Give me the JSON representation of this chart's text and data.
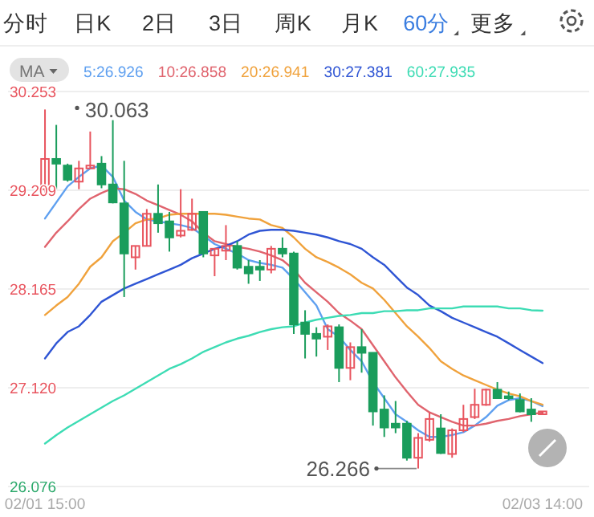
{
  "chart_data": {
    "type": "candlestick",
    "annotations": [
      "分时",
      "日K",
      "2日",
      "3日",
      "周K",
      "月K",
      "60分",
      "更多",
      "30.063",
      "26.266"
    ],
    "legend_title": "MA",
    "legend": "top left",
    "grid": "y",
    "categories": [
      "02/01 15:00",
      null,
      null,
      null,
      null,
      null,
      null,
      null,
      null,
      null,
      null,
      null,
      null,
      null,
      null,
      null,
      null,
      null,
      null,
      null,
      null,
      null,
      null,
      null,
      null,
      null,
      null,
      null,
      null,
      null,
      null,
      null,
      null,
      null,
      null,
      null,
      null,
      null,
      null,
      null,
      null,
      null,
      null,
      null,
      "02/03 14:00"
    ],
    "ylim": [
      26.076,
      30.253
    ],
    "yticks": [
      30.253,
      29.209,
      28.165,
      {
        "value": 27.12,
        "label": "27.120"
      },
      26.076
    ],
    "ohlc": [
      [
        29.22,
        30.063,
        29.18,
        29.54
      ],
      [
        29.54,
        29.9,
        29.22,
        29.49
      ],
      [
        29.47,
        29.49,
        29.3,
        29.32
      ],
      [
        29.3,
        29.52,
        29.22,
        29.44
      ],
      [
        29.44,
        29.83,
        29.44,
        29.47
      ],
      [
        29.49,
        29.57,
        29.23,
        29.27
      ],
      [
        29.27,
        29.95,
        29.07,
        29.08
      ],
      [
        29.07,
        29.52,
        28.08,
        28.54
      ],
      [
        28.5,
        28.62,
        28.37,
        28.62
      ],
      [
        28.62,
        29.01,
        28.62,
        28.96
      ],
      [
        28.96,
        29.27,
        28.76,
        28.86
      ],
      [
        28.88,
        28.98,
        28.56,
        28.71
      ],
      [
        28.73,
        29.22,
        28.71,
        28.78
      ],
      [
        28.79,
        29.12,
        28.78,
        28.96
      ],
      [
        28.98,
        28.98,
        28.5,
        28.54
      ],
      [
        28.52,
        28.59,
        28.3,
        28.59
      ],
      [
        28.57,
        28.84,
        28.47,
        28.62
      ],
      [
        28.62,
        28.67,
        28.37,
        28.39
      ],
      [
        28.4,
        28.47,
        28.22,
        28.33
      ],
      [
        28.4,
        28.47,
        28.25,
        28.37
      ],
      [
        28.37,
        28.62,
        28.33,
        28.59
      ],
      [
        28.59,
        28.71,
        28.5,
        28.54
      ],
      [
        28.54,
        28.56,
        27.69,
        27.79
      ],
      [
        27.81,
        27.94,
        27.43,
        27.69
      ],
      [
        27.69,
        27.76,
        27.45,
        27.64
      ],
      [
        27.66,
        27.79,
        27.52,
        27.77
      ],
      [
        27.76,
        27.79,
        27.18,
        27.33
      ],
      [
        27.33,
        27.6,
        27.2,
        27.55
      ],
      [
        27.55,
        27.74,
        27.28,
        27.49
      ],
      [
        27.49,
        27.49,
        26.72,
        26.87
      ],
      [
        26.89,
        27.04,
        26.6,
        26.7
      ],
      [
        26.74,
        26.98,
        26.64,
        26.7
      ],
      [
        26.74,
        26.77,
        26.35,
        26.38
      ],
      [
        26.38,
        26.64,
        26.266,
        26.59
      ],
      [
        26.57,
        26.86,
        26.55,
        26.79
      ],
      [
        26.69,
        26.84,
        26.42,
        26.43
      ],
      [
        26.42,
        26.69,
        26.38,
        26.67
      ],
      [
        26.67,
        26.94,
        26.65,
        26.79
      ],
      [
        26.81,
        27.11,
        26.79,
        26.94
      ],
      [
        26.94,
        27.11,
        26.93,
        27.1
      ],
      [
        27.1,
        27.18,
        27.01,
        27.01
      ],
      [
        27.03,
        27.08,
        26.99,
        27.01
      ],
      [
        26.99,
        27.06,
        26.86,
        26.87
      ],
      [
        26.89,
        27.01,
        26.76,
        26.84
      ],
      [
        26.84,
        26.87,
        26.84,
        26.87
      ]
    ],
    "colors": [
      "#e8545e",
      "#1a9d5c",
      "#1a9d5c",
      "#e8545e",
      "#e8545e",
      "#1a9d5c",
      "#1a9d5c",
      "#1a9d5c",
      "#e8545e",
      "#e8545e",
      "#1a9d5c",
      "#1a9d5c",
      "#e8545e",
      "#e8545e",
      "#1a9d5c",
      "#e8545e",
      "#e8545e",
      "#1a9d5c",
      "#1a9d5c",
      "#1a9d5c",
      "#e8545e",
      "#1a9d5c",
      "#1a9d5c",
      "#1a9d5c",
      "#1a9d5c",
      "#e8545e",
      "#1a9d5c",
      "#e8545e",
      "#1a9d5c",
      "#1a9d5c",
      "#1a9d5c",
      "#1a9d5c",
      "#1a9d5c",
      "#e8545e",
      "#e8545e",
      "#1a9d5c",
      "#e8545e",
      "#e8545e",
      "#e8545e",
      "#e8545e",
      "#1a9d5c",
      "#1a9d5c",
      "#1a9d5c",
      "#1a9d5c",
      "#e8545e"
    ],
    "series": [
      {
        "type": "line",
        "name": "5:26.926",
        "color": "#5fa0f0",
        "values": [
          28.91,
          29.08,
          29.25,
          29.35,
          29.44,
          29.47,
          29.35,
          29.1,
          28.98,
          28.9,
          28.88,
          28.86,
          28.84,
          28.81,
          28.73,
          28.64,
          28.59,
          28.54,
          28.47,
          28.44,
          28.42,
          28.39,
          28.27,
          28.13,
          27.99,
          27.74,
          27.66,
          27.52,
          27.4,
          27.18,
          27.01,
          26.84,
          26.76,
          26.67,
          26.6,
          26.6,
          26.62,
          26.65,
          26.72,
          26.81,
          26.93,
          26.99,
          27.01,
          26.98,
          26.926
        ]
      },
      {
        "type": "line",
        "name": "10:26.858",
        "color": "#e0646e",
        "values": [
          28.61,
          28.76,
          28.88,
          29.01,
          29.12,
          29.18,
          29.23,
          29.22,
          29.17,
          29.1,
          29.05,
          29.0,
          28.95,
          28.88,
          28.76,
          28.67,
          28.64,
          28.61,
          28.59,
          28.56,
          28.52,
          28.47,
          28.37,
          28.23,
          28.13,
          28.03,
          27.91,
          27.83,
          27.74,
          27.57,
          27.4,
          27.23,
          27.08,
          26.94,
          26.86,
          26.81,
          26.76,
          26.72,
          26.72,
          26.74,
          26.77,
          26.79,
          26.82,
          26.84,
          26.858
        ]
      },
      {
        "type": "line",
        "name": "20:26.941",
        "color": "#f0a23c",
        "values": [
          27.89,
          27.99,
          28.08,
          28.22,
          28.4,
          28.5,
          28.67,
          28.76,
          28.86,
          28.9,
          28.91,
          28.95,
          28.96,
          28.96,
          28.96,
          28.96,
          28.95,
          28.93,
          28.91,
          28.9,
          28.84,
          28.81,
          28.71,
          28.59,
          28.5,
          28.45,
          28.39,
          28.32,
          28.23,
          28.17,
          28.05,
          27.91,
          27.77,
          27.66,
          27.54,
          27.4,
          27.32,
          27.25,
          27.2,
          27.15,
          27.1,
          27.06,
          27.03,
          26.98,
          26.941
        ]
      },
      {
        "type": "line",
        "name": "30:27.381",
        "color": "#2f55d4",
        "values": [
          27.43,
          27.59,
          27.71,
          27.77,
          27.89,
          28.03,
          28.1,
          28.17,
          28.22,
          28.27,
          28.32,
          28.37,
          28.42,
          28.49,
          28.54,
          28.59,
          28.62,
          28.67,
          28.74,
          28.78,
          28.79,
          28.79,
          28.78,
          28.76,
          28.74,
          28.71,
          28.67,
          28.64,
          28.59,
          28.5,
          28.42,
          28.3,
          28.18,
          28.1,
          27.99,
          27.93,
          27.86,
          27.81,
          27.76,
          27.71,
          27.66,
          27.59,
          27.52,
          27.45,
          27.381
        ]
      },
      {
        "type": "line",
        "name": "60:27.935",
        "color": "#3ddcb4",
        "values": [
          26.53,
          26.62,
          26.7,
          26.77,
          26.84,
          26.91,
          26.98,
          27.04,
          27.11,
          27.18,
          27.25,
          27.32,
          27.37,
          27.43,
          27.5,
          27.55,
          27.6,
          27.64,
          27.67,
          27.71,
          27.74,
          27.76,
          27.77,
          27.81,
          27.84,
          27.86,
          27.88,
          27.89,
          27.91,
          27.91,
          27.93,
          27.93,
          27.94,
          27.94,
          27.96,
          27.96,
          27.96,
          27.98,
          27.98,
          27.98,
          27.98,
          27.96,
          27.96,
          27.94,
          27.935
        ]
      }
    ]
  }
}
